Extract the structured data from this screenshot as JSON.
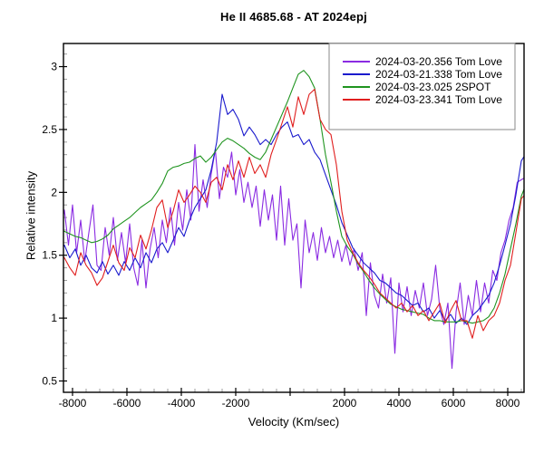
{
  "title": "He II 4685.68 - AT 2024epj",
  "chart_data": {
    "type": "line",
    "title": "He II 4685.68 - AT 2024epj",
    "xlabel": "Velocity (Km/sec)",
    "ylabel": "Relative intensity",
    "xlim": [
      -8333,
      8600
    ],
    "ylim": [
      0.41,
      3.184
    ],
    "grid": false,
    "legend_position": "top-right",
    "x_major_ticks": [
      -8000,
      -6000,
      -4000,
      -2000,
      0,
      2000,
      4000,
      6000,
      8000
    ],
    "x_tick_labels": [
      "-8000",
      "-6000",
      "-4000",
      "-2000",
      "",
      "2000",
      "4000",
      "6000",
      "8000"
    ],
    "x_minor_step": 500,
    "y_major_ticks": [
      0.5,
      1,
      1.5,
      2,
      2.5,
      3
    ],
    "y_tick_labels": [
      "0.5",
      "1",
      "1.5",
      "2",
      "2.5",
      "3"
    ],
    "y_minor_step": 0.1,
    "axis_color": "#000000",
    "minor_tick_color": "#9c9c9c",
    "legend_border_color": "#8a8a8a",
    "series": [
      {
        "name": "2024-03-20.356  Tom Love",
        "color": "#8a2be2",
        "x0": -8450,
        "dx": 150,
        "values": [
          1.7,
          1.86,
          1.58,
          1.9,
          1.52,
          1.78,
          1.45,
          1.68,
          1.9,
          1.42,
          1.38,
          1.72,
          1.5,
          1.8,
          1.46,
          1.68,
          1.44,
          1.75,
          1.4,
          1.26,
          1.62,
          1.24,
          1.55,
          1.72,
          1.48,
          1.78,
          1.6,
          1.88,
          1.58,
          1.92,
          1.7,
          2.02,
          1.78,
          2.38,
          1.85,
          2.1,
          1.88,
          2.15,
          2.34,
          1.95,
          2.2,
          2.12,
          2.32,
          1.98,
          2.18,
          1.92,
          2.08,
          1.88,
          2.05,
          1.73,
          2.02,
          1.78,
          1.98,
          1.62,
          2.05,
          1.58,
          1.95,
          1.62,
          1.75,
          1.24,
          1.78,
          1.52,
          1.68,
          1.46,
          1.72,
          1.52,
          1.65,
          1.48,
          1.62,
          1.45,
          1.58,
          1.42,
          1.55,
          1.38,
          1.52,
          1.02,
          1.44,
          1.18,
          1.08,
          1.35,
          1.12,
          1.32,
          0.72,
          1.28,
          1.05,
          1.25,
          1.02,
          1.22,
          1.08,
          1.28,
          1.02,
          1.15,
          1.42,
          1.08,
          0.95,
          1.12,
          0.6,
          1.05,
          1.28,
          0.95,
          1.18,
          1.02,
          1.3,
          1.05,
          1.28,
          1.12,
          1.38,
          1.3,
          1.52,
          1.62,
          1.78,
          1.88,
          2.08,
          2.1,
          2.12
        ]
      },
      {
        "name": "2024-03-21.338  Tom Love",
        "color": "#1a1acd",
        "x0": -8500,
        "dx": 200,
        "values": [
          1.52,
          1.58,
          1.48,
          1.55,
          1.42,
          1.5,
          1.4,
          1.36,
          1.45,
          1.35,
          1.42,
          1.34,
          1.45,
          1.38,
          1.48,
          1.4,
          1.52,
          1.44,
          1.55,
          1.6,
          1.52,
          1.62,
          1.72,
          1.65,
          1.78,
          1.88,
          1.95,
          2.02,
          2.18,
          2.4,
          2.78,
          2.62,
          2.66,
          2.58,
          2.45,
          2.52,
          2.46,
          2.38,
          2.42,
          2.38,
          2.46,
          2.52,
          2.56,
          2.44,
          2.46,
          2.38,
          2.42,
          2.32,
          2.26,
          2.14,
          2.02,
          1.9,
          1.76,
          1.66,
          1.56,
          1.5,
          1.44,
          1.4,
          1.36,
          1.3,
          1.28,
          1.24,
          1.2,
          1.18,
          1.14,
          1.1,
          1.12,
          1.05,
          1.08,
          1.0,
          1.06,
          0.98,
          1.03,
          0.96,
          1.0,
          0.95,
          1.02,
          1.06,
          1.12,
          1.18,
          1.28,
          1.42,
          1.58,
          1.75,
          1.98,
          2.25,
          2.32
        ]
      },
      {
        "name": "2024-03-23.025  2SPOT",
        "color": "#1f941f",
        "x0": -8500,
        "dx": 200,
        "values": [
          1.7,
          1.69,
          1.67,
          1.65,
          1.64,
          1.62,
          1.6,
          1.61,
          1.63,
          1.66,
          1.71,
          1.74,
          1.77,
          1.8,
          1.84,
          1.88,
          1.91,
          1.94,
          2.0,
          2.07,
          2.17,
          2.2,
          2.21,
          2.23,
          2.24,
          2.27,
          2.29,
          2.24,
          2.28,
          2.34,
          2.4,
          2.43,
          2.41,
          2.38,
          2.35,
          2.31,
          2.28,
          2.26,
          2.32,
          2.42,
          2.52,
          2.62,
          2.72,
          2.83,
          2.94,
          2.97,
          2.92,
          2.83,
          2.58,
          2.3,
          2.08,
          1.85,
          1.65,
          1.57,
          1.51,
          1.43,
          1.37,
          1.3,
          1.24,
          1.19,
          1.15,
          1.11,
          1.09,
          1.07,
          1.06,
          1.05,
          1.04,
          1.03,
          1.0,
          0.98,
          0.98,
          0.97,
          0.97,
          0.97,
          0.98,
          0.97,
          0.96,
          0.97,
          0.98,
          1.01,
          1.08,
          1.2,
          1.35,
          1.55,
          1.75,
          1.97,
          2.08
        ]
      },
      {
        "name": "2024-03-23.341  Tom Love",
        "color": "#e01e1e",
        "x0": -8500,
        "dx": 200,
        "values": [
          1.52,
          1.48,
          1.4,
          1.34,
          1.52,
          1.42,
          1.36,
          1.26,
          1.32,
          1.45,
          1.58,
          1.44,
          1.38,
          1.56,
          1.48,
          1.66,
          1.55,
          1.7,
          1.88,
          1.94,
          1.72,
          1.85,
          2.02,
          1.92,
          1.98,
          2.05,
          2.0,
          1.92,
          2.08,
          2.12,
          2.02,
          2.22,
          2.1,
          2.25,
          2.12,
          2.28,
          2.15,
          2.22,
          2.12,
          2.3,
          2.42,
          2.55,
          2.68,
          2.52,
          2.76,
          2.62,
          2.78,
          2.82,
          2.58,
          2.5,
          2.46,
          2.22,
          1.85,
          1.62,
          1.52,
          1.44,
          1.38,
          1.33,
          1.27,
          1.2,
          1.16,
          1.12,
          1.08,
          1.12,
          1.05,
          1.1,
          1.02,
          1.06,
          0.98,
          1.05,
          1.12,
          0.96,
          1.06,
          1.14,
          0.98,
          0.98,
          0.84,
          1.02,
          0.9,
          0.98,
          1.02,
          1.12,
          1.3,
          1.42,
          1.68,
          1.95,
          2.0
        ]
      }
    ]
  }
}
